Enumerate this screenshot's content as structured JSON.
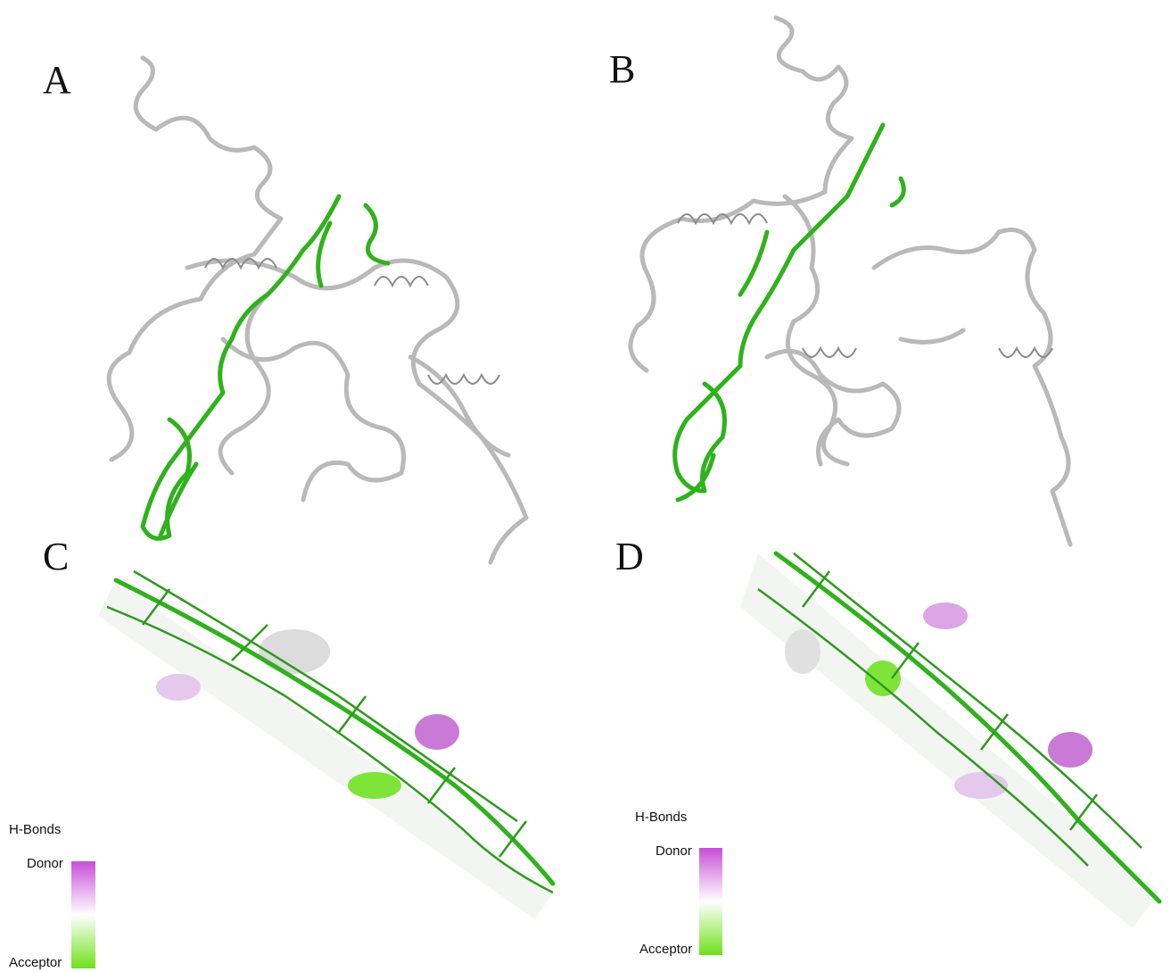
{
  "panels": [
    {
      "label": "A"
    },
    {
      "label": "B"
    },
    {
      "label": "C",
      "legend": {
        "title": "H-Bonds",
        "top": "Donor",
        "bottom": "Acceptor"
      }
    },
    {
      "label": "D",
      "legend": {
        "title": "H-Bonds",
        "top": "Donor",
        "bottom": "Acceptor"
      }
    }
  ]
}
